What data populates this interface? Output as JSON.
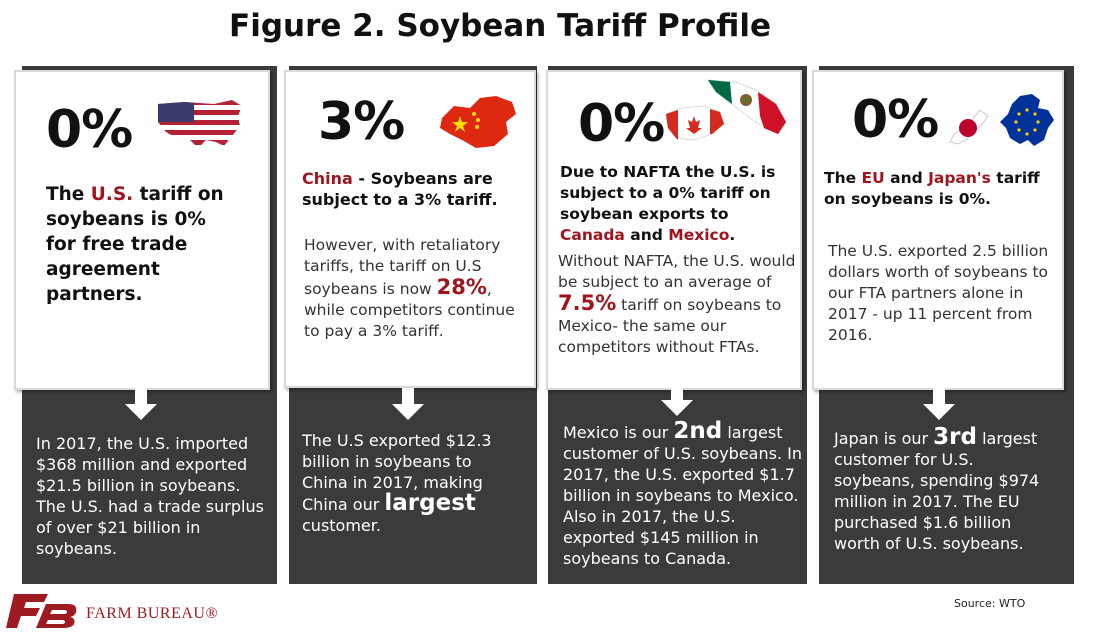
{
  "title": "Figure 2. Soybean Tariff Profile",
  "panels": [
    {
      "id": "us",
      "percent": "0%",
      "head": {
        "p1": "The ",
        "r1": "U.S.",
        "p2": " tariff on soybeans is 0% for free trade agreement partners."
      },
      "dark": "In 2017, the U.S. imported $368 million and exported $21.5 billion in soybeans. The U.S. had a trade surplus of over $21 billion in soybeans."
    },
    {
      "id": "china",
      "percent": "3%",
      "head": {
        "r1": "China",
        "p1": " - Soybeans are subject to a 3% tariff."
      },
      "body": {
        "p1": "However, with retaliatory tariffs, the tariff on U.S soybeans is now ",
        "big": "28%",
        "p2": ", while competitors continue to pay a 3% tariff."
      },
      "dark": {
        "p1": "The U.S exported $12.3 billion in soybeans to China in 2017, making China our ",
        "big": "largest",
        "p2": " customer."
      }
    },
    {
      "id": "nafta",
      "percent": "0%",
      "head": {
        "p1": "Due to NAFTA the U.S. is subject to a 0% tariff on soybean exports to ",
        "r1": "Canada",
        "p2": " and ",
        "r2": "Mexico",
        "p3": "."
      },
      "body": {
        "p1": "Without NAFTA, the U.S. would be subject to an average of ",
        "big": "7.5%",
        "p2": " tariff on soybeans to Mexico- the same our competitors without FTAs."
      },
      "dark": {
        "p1": "Mexico is our ",
        "big": "2nd",
        "p2": " largest customer of U.S. soybeans. In 2017, the U.S. exported $1.7 billion in soybeans to Mexico. Also in 2017, the U.S. exported $145 million in soybeans to Canada."
      }
    },
    {
      "id": "eu-japan",
      "percent": "0%",
      "head": {
        "p1": "The ",
        "r1": "EU",
        "p2": " and ",
        "r2": "Japan's",
        "p3": " tariff on soybeans is 0%."
      },
      "body": "The U.S. exported 2.5 billion dollars worth of soybeans to our FTA partners alone in 2017 - up 11 percent from 2016.",
      "dark": {
        "p1": "Japan is our ",
        "big": "3rd",
        "p2": " largest customer for U.S. soybeans, spending $974 million in 2017. The EU purchased $1.6 billion worth of U.S. soybeans."
      }
    }
  ],
  "icons": [
    "us-map-flag-icon",
    "china-map-flag-icon",
    "canada-flag-icon",
    "mexico-flag-icon",
    "japan-flag-icon",
    "eu-map-flag-icon"
  ],
  "colors": {
    "accent_red": "#a0141e",
    "dark_panel": "#3b3b3b"
  },
  "source": "Source: WTO",
  "logo": {
    "initials": "FB",
    "text": "FARM BUREAU®"
  }
}
